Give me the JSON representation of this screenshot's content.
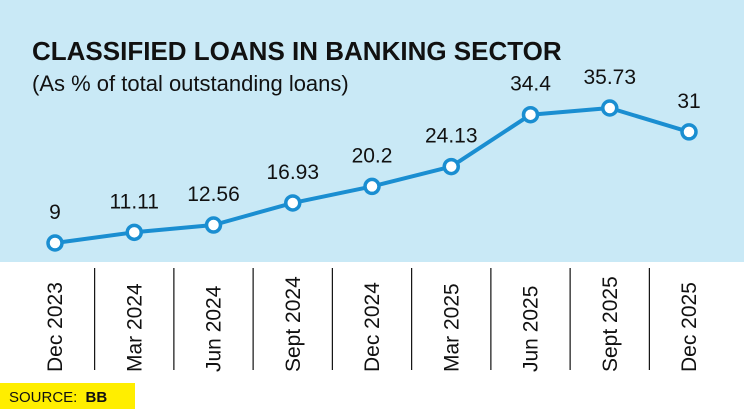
{
  "title": "CLASSIFIED LOANS IN BANKING SECTOR",
  "subtitle": "(As % of total outstanding loans)",
  "source_label": "SOURCE:",
  "source_value": "BB",
  "colors": {
    "plot_background": "#c9e9f6",
    "line": "#1a8ed1",
    "marker_fill": "#ffffff",
    "divider": "#111111",
    "source_background": "#ffee00"
  },
  "chart_data": {
    "type": "line",
    "title": "CLASSIFIED LOANS IN BANKING SECTOR",
    "subtitle": "(As % of total outstanding loans)",
    "categories": [
      "Dec 2023",
      "Mar 2024",
      "Jun 2024",
      "Sept 2024",
      "Dec 2024",
      "Mar 2025",
      "Jun 2025",
      "Sept 2025",
      "Dec 2025"
    ],
    "values": [
      9,
      11.11,
      12.56,
      16.93,
      20.2,
      24.13,
      34.4,
      35.73,
      31
    ],
    "data_labels": [
      "9",
      "11.11",
      "12.56",
      "16.93",
      "20.2",
      "24.13",
      "34.4",
      "35.73",
      "31"
    ],
    "xlabel": "",
    "ylabel": "",
    "grid": false,
    "markers": "hollow-circle"
  }
}
